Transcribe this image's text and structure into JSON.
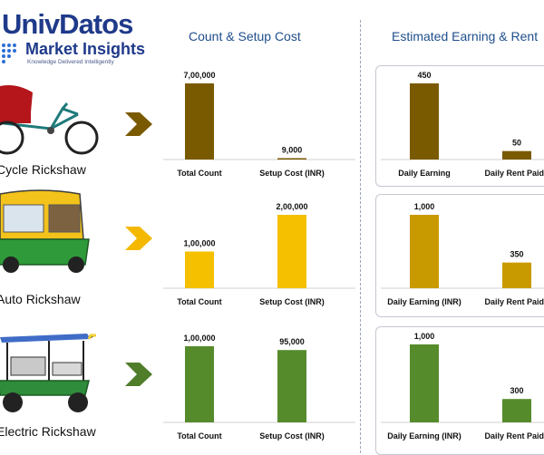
{
  "logo": {
    "name": "UnivDatos",
    "sub": "Market Insights",
    "tagline": "Knowledge Delivered Intelligently"
  },
  "headers": {
    "left": "Count & Setup Cost",
    "right": "Estimated Earning & Rent"
  },
  "rows": [
    {
      "label": "Cycle Rickshaw",
      "color": "#7a5a00",
      "chevron_color": "#7a5a00"
    },
    {
      "label": "Auto Rickshaw",
      "color": "#f5c000",
      "chevron_color": "#f5b800"
    },
    {
      "label": "Electric Rickshaw",
      "color": "#568b2c",
      "chevron_color": "#4f7d2a"
    }
  ],
  "colors": {
    "cycle": "#7a5a00",
    "auto_count": "#f5c000",
    "auto_earning": "#c99a00",
    "electric": "#568b2c",
    "header": "#1f4e8c"
  },
  "chart_data": [
    {
      "type": "bar",
      "row": "Cycle Rickshaw",
      "panel": "Count & Setup Cost",
      "categories": [
        "Total Count",
        "Setup Cost (INR)"
      ],
      "values": [
        700000,
        9000
      ],
      "value_labels": [
        "7,00,000",
        "9,000"
      ],
      "color": "#7a5a00"
    },
    {
      "type": "bar",
      "row": "Cycle Rickshaw",
      "panel": "Estimated Earning & Rent",
      "categories": [
        "Daily Earning",
        "Daily Rent Paid ("
      ],
      "values": [
        450,
        50
      ],
      "value_labels": [
        "450",
        "50"
      ],
      "color": "#7a5a00"
    },
    {
      "type": "bar",
      "row": "Auto Rickshaw",
      "panel": "Count & Setup Cost",
      "categories": [
        "Total Count",
        "Setup Cost (INR)"
      ],
      "values": [
        100000,
        200000
      ],
      "value_labels": [
        "1,00,000",
        "2,00,000"
      ],
      "color": "#f5c000"
    },
    {
      "type": "bar",
      "row": "Auto Rickshaw",
      "panel": "Estimated Earning & Rent",
      "categories": [
        "Daily Earning (INR)",
        "Daily Rent Paid ("
      ],
      "values": [
        1000,
        350
      ],
      "value_labels": [
        "1,000",
        "350"
      ],
      "color": "#c99a00"
    },
    {
      "type": "bar",
      "row": "Electric Rickshaw",
      "panel": "Count & Setup Cost",
      "categories": [
        "Total Count",
        "Setup Cost (INR)"
      ],
      "values": [
        100000,
        95000
      ],
      "value_labels": [
        "1,00,000",
        "95,000"
      ],
      "color": "#568b2c"
    },
    {
      "type": "bar",
      "row": "Electric Rickshaw",
      "panel": "Estimated Earning & Rent",
      "categories": [
        "Daily Earning (INR)",
        "Daily Rent Paid ("
      ],
      "values": [
        1000,
        300
      ],
      "value_labels": [
        "1,000",
        "300"
      ],
      "color": "#568b2c"
    }
  ]
}
